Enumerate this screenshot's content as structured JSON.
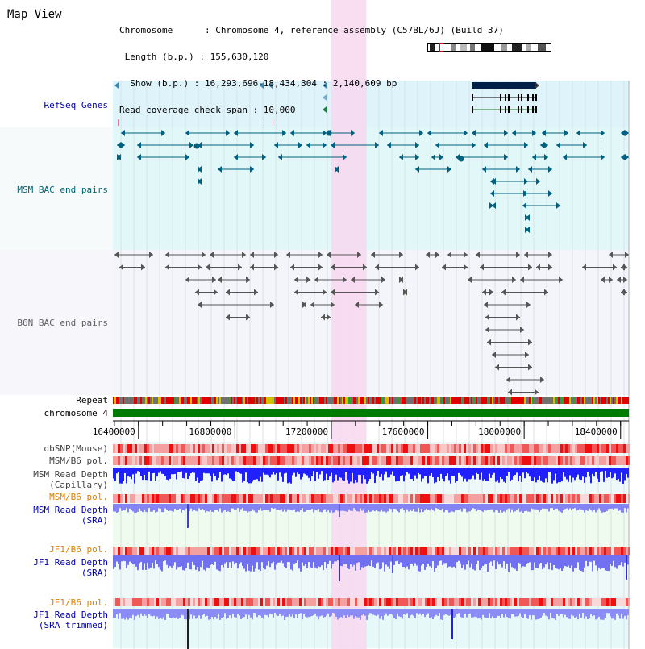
{
  "view_title": "Map View",
  "chrom_info": [
    "Chromosome      : Chromosome 4, reference assembly (C57BL/6J) (Build 37)",
    " Length (b.p.) : 155,630,120",
    "  Show (b.p.) : 16,293,696-18,434,304 : 2,140,609 bp",
    "Read coverage check span : 10,000"
  ],
  "track_labels": {
    "refseq": "RefSeq Genes",
    "msm_bac": "MSM BAC end pairs",
    "b6n_bac": "B6N BAC end pairs",
    "repeat": "Repeat",
    "chrom": "chromosome 4",
    "dbsnp": "dbSNP(Mouse)",
    "msm_b6_pol_a": "MSM/B6 pol.",
    "msm_depth_cap_1": "MSM Read Depth",
    "msm_depth_cap_2": "(Capillary)",
    "msm_b6_pol_b": "MSM/B6 pol.",
    "msm_depth_sra_1": "MSM Read Depth",
    "msm_depth_sra_2": "(SRA)",
    "jf1_b6_pol_a": "JF1/B6 pol.",
    "jf1_depth_sra_1": "JF1 Read Depth",
    "jf1_depth_sra_2": "(SRA)",
    "jf1_b6_pol_b": "JF1/B6 pol.",
    "jf1_depth_trim_1": "JF1 Read Depth",
    "jf1_depth_trim_2": "(SRA trimmed)"
  },
  "ruler_ticks": [
    "16400000",
    "16800000",
    "17200000",
    "17600000",
    "18000000",
    "18400000"
  ],
  "view_range_bp": [
    16293696,
    18434304
  ],
  "highlight_bp": [
    17200000,
    17345000
  ],
  "colors": {
    "refseq_bg": "#dff3fb",
    "msm_bg": "#e2f8f8",
    "b6n_bg": "#f4f4fb",
    "highlight": "#f8d8f0",
    "chrom_bar": "#007a00",
    "gene_dark": "#00204a",
    "msm_feature": "#006080",
    "b6n_feature": "#555555",
    "label_blue": "#0000b0",
    "label_orange": "#e08000",
    "label_teal": "#006070",
    "depth_blue": "#2020ff",
    "depth_light": "#7c7cff"
  }
}
